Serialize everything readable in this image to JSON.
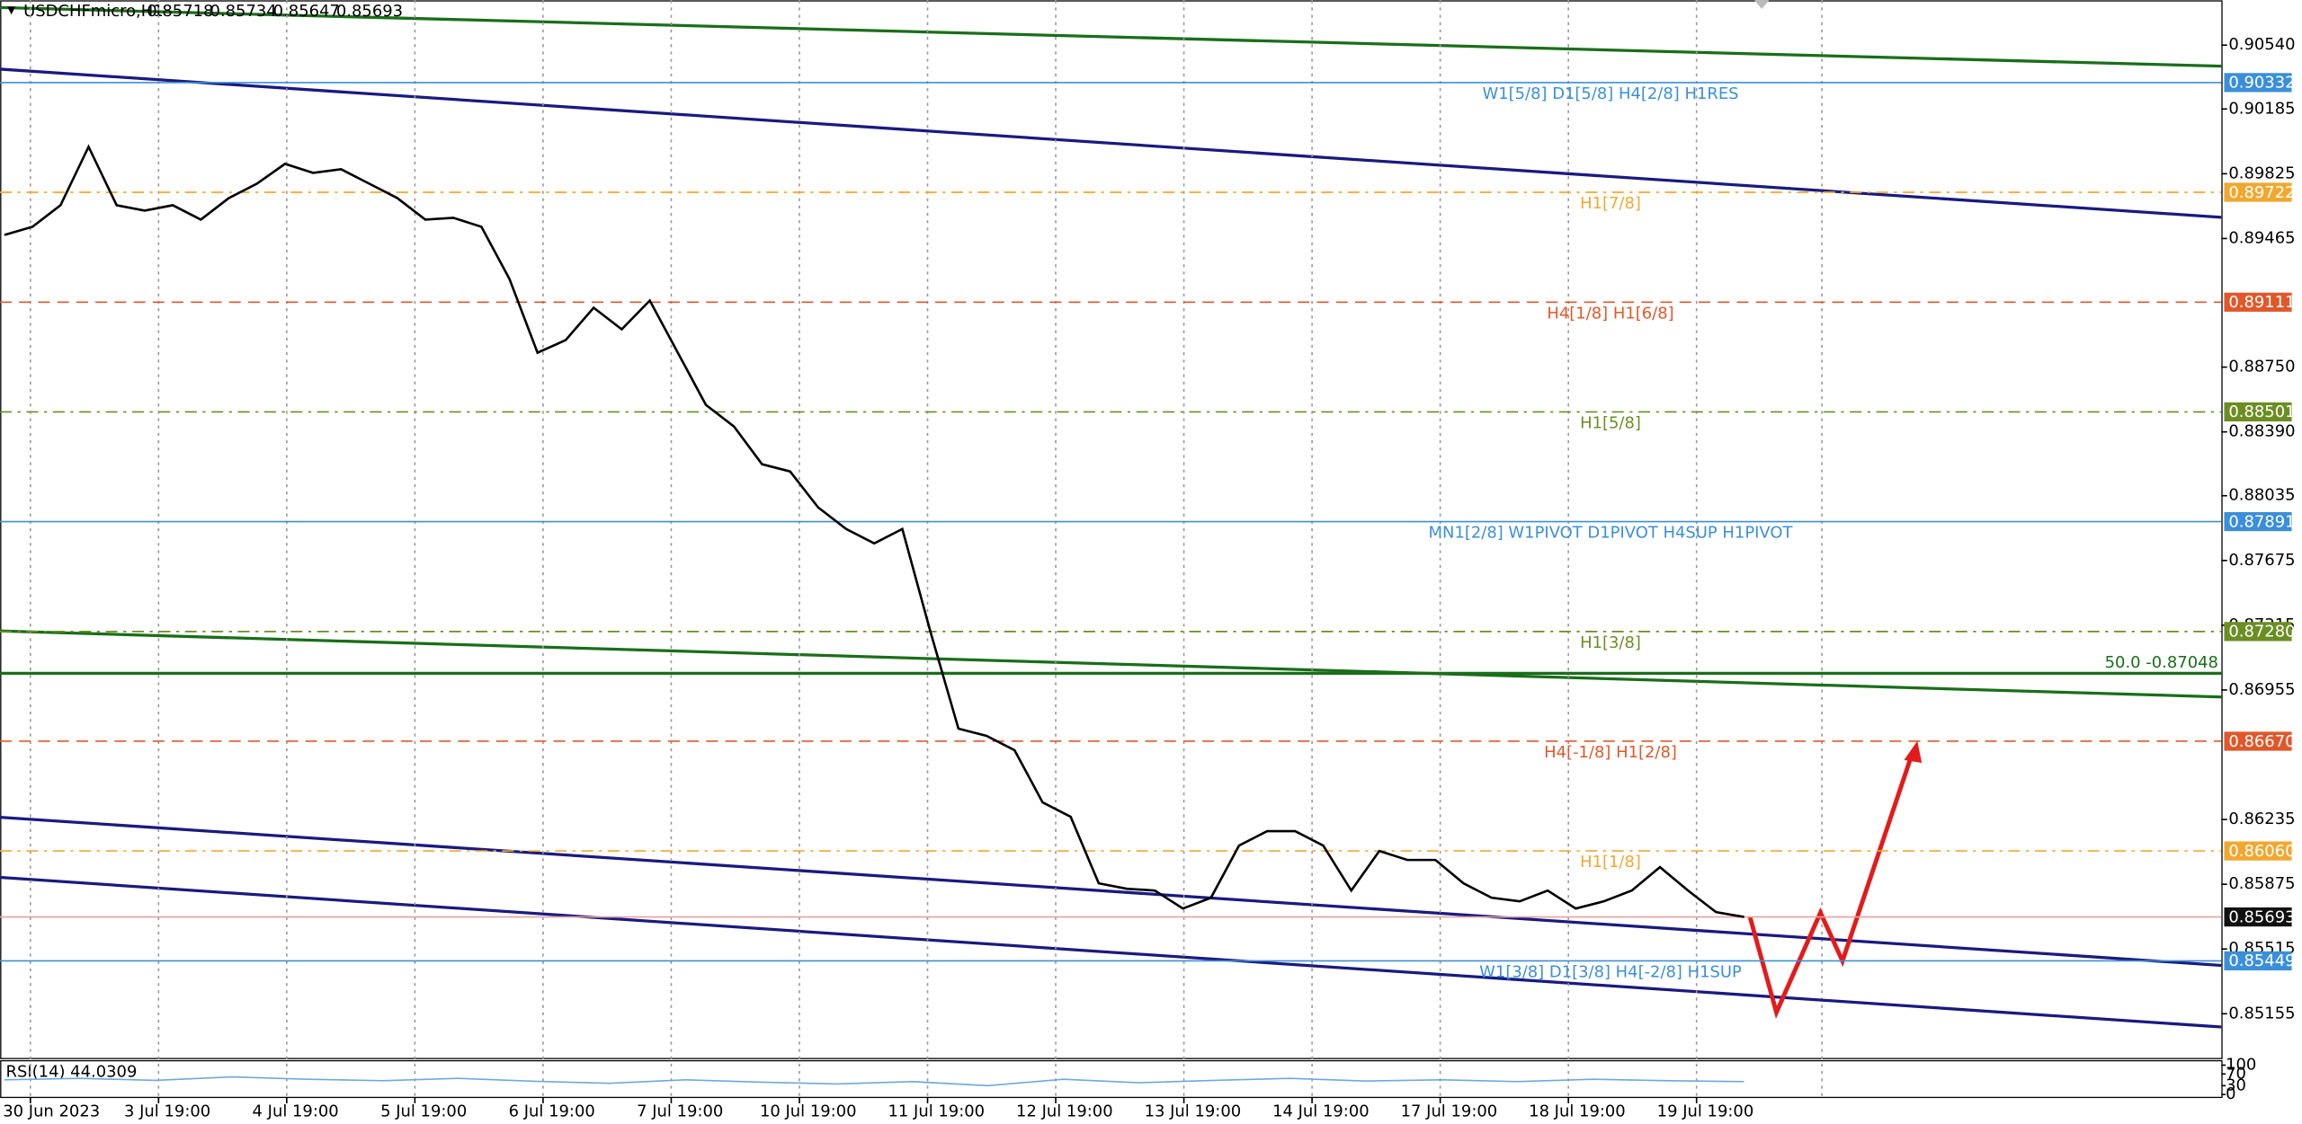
{
  "chart_data": {
    "type": "line",
    "title": "USDCHFmicro,H1",
    "quote": [
      0.85718,
      0.85734,
      0.85647,
      0.85693
    ],
    "categories": [
      "30 Jun 2023",
      "3 Jul 19:00",
      "4 Jul 19:00",
      "5 Jul 19:00",
      "6 Jul 19:00",
      "7 Jul 19:00",
      "10 Jul 19:00",
      "11 Jul 19:00",
      "12 Jul 19:00",
      "13 Jul 19:00",
      "14 Jul 19:00",
      "17 Jul 19:00",
      "18 Jul 19:00",
      "19 Jul 19:00"
    ],
    "close_values": [
      0.89485,
      0.8953,
      0.8965,
      0.89975,
      0.8965,
      0.8962,
      0.8965,
      0.8957,
      0.8969,
      0.8977,
      0.8988,
      0.8983,
      0.8985,
      0.8977,
      0.8969,
      0.8957,
      0.8958,
      0.8953,
      0.8924,
      0.8883,
      0.889,
      0.8908,
      0.8896,
      0.8912,
      0.8883,
      0.8854,
      0.8842,
      0.8821,
      0.8817,
      0.8797,
      0.8785,
      0.8777,
      0.8785,
      0.8728,
      0.8674,
      0.867,
      0.8662,
      0.8633,
      0.8625,
      0.8588,
      0.8585,
      0.8584,
      0.8574,
      0.858,
      0.8609,
      0.8617,
      0.8617,
      0.8609,
      0.8584,
      0.8606,
      0.8601,
      0.8601,
      0.8588,
      0.858,
      0.8578,
      0.8584,
      0.8574,
      0.8578,
      0.8584,
      0.8597,
      0.8584,
      0.8572,
      0.85693
    ],
    "color": "#000000",
    "ylim": [
      0.8491,
      0.9079
    ],
    "yticks": [
      {
        "value": 0.9054,
        "label": "0.90540"
      },
      {
        "value": 0.90185,
        "label": "0.90185"
      },
      {
        "value": 0.89825,
        "label": "0.89825"
      },
      {
        "value": 0.89465,
        "label": "0.89465"
      },
      {
        "value": 0.8875,
        "label": "0.88750"
      },
      {
        "value": 0.8839,
        "label": "0.88390"
      },
      {
        "value": 0.88035,
        "label": "0.88035"
      },
      {
        "value": 0.87675,
        "label": "0.87675"
      },
      {
        "value": 0.87315,
        "label": "0.87315"
      },
      {
        "value": 0.86955,
        "label": "0.86955"
      },
      {
        "value": 0.86235,
        "label": "0.86235"
      },
      {
        "value": 0.85875,
        "label": "0.85875"
      },
      {
        "value": 0.85515,
        "label": "0.85515"
      },
      {
        "value": 0.85155,
        "label": "0.85155"
      }
    ],
    "levels": [
      {
        "text": "W1[5/8] D1[5/8] H4[2/8] H1RES",
        "value": 0.90332,
        "value_label": "0.90332",
        "color": "#3b8fd9",
        "style": "solid"
      },
      {
        "text": "H1[7/8]",
        "value": 0.89722,
        "value_label": "0.89722",
        "color": "#f0a830",
        "style": "dashdot"
      },
      {
        "text": "H4[1/8] H1[6/8]",
        "value": 0.89111,
        "value_label": "0.89111",
        "color": "#e0582a",
        "style": "dash"
      },
      {
        "text": "H1[5/8]",
        "value": 0.88501,
        "value_label": "0.88501",
        "color": "#6b8e23",
        "style": "dashdot"
      },
      {
        "text": "MN1[2/8] W1PIVOT D1PIVOT H4SUP H1PIVOT",
        "value": 0.87891,
        "value_label": "0.87891",
        "color": "#3b8fd9",
        "style": "solid"
      },
      {
        "text": "H1[3/8]",
        "value": 0.8728,
        "value_label": "0.87280",
        "color": "#6b8e23",
        "style": "dashdot"
      },
      {
        "text": "H4[-1/8] H1[2/8]",
        "value": 0.8667,
        "value_label": "0.86670",
        "color": "#e0582a",
        "style": "dash"
      },
      {
        "text": "H1[1/8]",
        "value": 0.8606,
        "value_label": "0.86060",
        "color": "#f0a830",
        "style": "dashdot"
      },
      {
        "value": 0.85693,
        "value_label": "0.85693",
        "color": "#111111",
        "style": "solid"
      },
      {
        "text": "W1[3/8] D1[3/8] H4[-2/8] H1SUP",
        "value": 0.85449,
        "value_label": "0.85449",
        "color": "#3b8fd9",
        "style": "solid"
      }
    ],
    "fibo": {
      "text": "50.0 -0.87048",
      "value": 0.87048,
      "color": "#1a6e1a"
    },
    "rsi": {
      "label": "RSI(14) 44.0309",
      "ylim": [
        0,
        100
      ],
      "yticks": [
        100,
        70,
        30,
        0
      ],
      "color": "#6fa8dc",
      "values": [
        50,
        55,
        48,
        60,
        52,
        47,
        55,
        45,
        38,
        50,
        42,
        36,
        44,
        30,
        52,
        40,
        48,
        55,
        46,
        50,
        44,
        52,
        47,
        44
      ]
    }
  }
}
